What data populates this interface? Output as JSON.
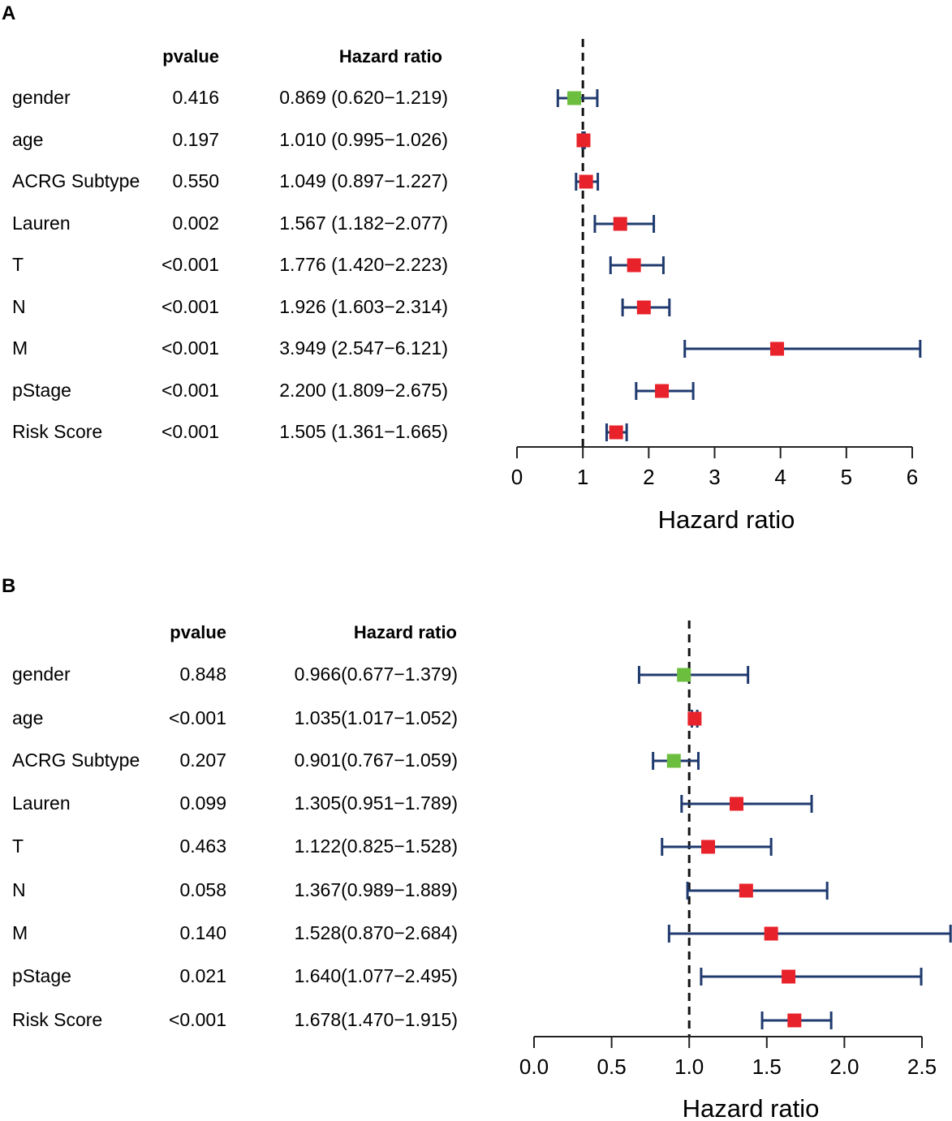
{
  "chart_data": [
    {
      "type": "forest",
      "panel": "A",
      "title": "",
      "headers": {
        "pvalue": "pvalue",
        "hr": "Hazard ratio"
      },
      "xlabel": "Hazard ratio",
      "xlim": [
        0,
        6
      ],
      "ticks": [
        "0",
        "1",
        "2",
        "3",
        "4",
        "5",
        "6"
      ],
      "tick_values": [
        0,
        1,
        2,
        3,
        4,
        5,
        6
      ],
      "reference": 1,
      "rows": [
        {
          "name": "gender",
          "pvalue": "0.416",
          "hr_text": "0.869 (0.620−1.219)",
          "hr": 0.869,
          "lo": 0.62,
          "hi": 1.219,
          "color": "#6cbe3f"
        },
        {
          "name": "age",
          "pvalue": "0.197",
          "hr_text": "1.010 (0.995−1.026)",
          "hr": 1.01,
          "lo": 0.995,
          "hi": 1.026,
          "color": "#e8222a"
        },
        {
          "name": "ACRG Subtype",
          "pvalue": "0.550",
          "hr_text": "1.049 (0.897−1.227)",
          "hr": 1.049,
          "lo": 0.897,
          "hi": 1.227,
          "color": "#e8222a"
        },
        {
          "name": "Lauren",
          "pvalue": "0.002",
          "hr_text": "1.567 (1.182−2.077)",
          "hr": 1.567,
          "lo": 1.182,
          "hi": 2.077,
          "color": "#e8222a"
        },
        {
          "name": "T",
          "pvalue": "<0.001",
          "hr_text": "1.776 (1.420−2.223)",
          "hr": 1.776,
          "lo": 1.42,
          "hi": 2.223,
          "color": "#e8222a"
        },
        {
          "name": "N",
          "pvalue": "<0.001",
          "hr_text": "1.926 (1.603−2.314)",
          "hr": 1.926,
          "lo": 1.603,
          "hi": 2.314,
          "color": "#e8222a"
        },
        {
          "name": "M",
          "pvalue": "<0.001",
          "hr_text": "3.949 (2.547−6.121)",
          "hr": 3.949,
          "lo": 2.547,
          "hi": 6.121,
          "color": "#e8222a"
        },
        {
          "name": "pStage",
          "pvalue": "<0.001",
          "hr_text": "2.200 (1.809−2.675)",
          "hr": 2.2,
          "lo": 1.809,
          "hi": 2.675,
          "color": "#e8222a"
        },
        {
          "name": "Risk Score",
          "pvalue": "<0.001",
          "hr_text": "1.505 (1.361−1.665)",
          "hr": 1.505,
          "lo": 1.361,
          "hi": 1.665,
          "color": "#e8222a"
        }
      ]
    },
    {
      "type": "forest",
      "panel": "B",
      "title": "",
      "headers": {
        "pvalue": "pvalue",
        "hr": "Hazard ratio"
      },
      "xlabel": "Hazard ratio",
      "xlim": [
        0,
        2.5
      ],
      "ticks": [
        "0.0",
        "0.5",
        "1.0",
        "1.5",
        "2.0",
        "2.5"
      ],
      "tick_values": [
        0,
        0.5,
        1.0,
        1.5,
        2.0,
        2.5
      ],
      "reference": 1,
      "rows": [
        {
          "name": "gender",
          "pvalue": "0.848",
          "hr_text": "0.966(0.677−1.379)",
          "hr": 0.966,
          "lo": 0.677,
          "hi": 1.379,
          "color": "#6cbe3f"
        },
        {
          "name": "age",
          "pvalue": "<0.001",
          "hr_text": "1.035(1.017−1.052)",
          "hr": 1.035,
          "lo": 1.017,
          "hi": 1.052,
          "color": "#e8222a"
        },
        {
          "name": "ACRG Subtype",
          "pvalue": "0.207",
          "hr_text": "0.901(0.767−1.059)",
          "hr": 0.901,
          "lo": 0.767,
          "hi": 1.059,
          "color": "#6cbe3f"
        },
        {
          "name": "Lauren",
          "pvalue": "0.099",
          "hr_text": "1.305(0.951−1.789)",
          "hr": 1.305,
          "lo": 0.951,
          "hi": 1.789,
          "color": "#e8222a"
        },
        {
          "name": "T",
          "pvalue": "0.463",
          "hr_text": "1.122(0.825−1.528)",
          "hr": 1.122,
          "lo": 0.825,
          "hi": 1.528,
          "color": "#e8222a"
        },
        {
          "name": "N",
          "pvalue": "0.058",
          "hr_text": "1.367(0.989−1.889)",
          "hr": 1.367,
          "lo": 0.989,
          "hi": 1.889,
          "color": "#e8222a"
        },
        {
          "name": "M",
          "pvalue": "0.140",
          "hr_text": "1.528(0.870−2.684)",
          "hr": 1.528,
          "lo": 0.87,
          "hi": 2.684,
          "color": "#e8222a"
        },
        {
          "name": "pStage",
          "pvalue": "0.021",
          "hr_text": "1.640(1.077−2.495)",
          "hr": 1.64,
          "lo": 1.077,
          "hi": 2.495,
          "color": "#e8222a"
        },
        {
          "name": "Risk Score",
          "pvalue": "<0.001",
          "hr_text": "1.678(1.470−1.915)",
          "hr": 1.678,
          "lo": 1.47,
          "hi": 1.915,
          "color": "#e8222a"
        }
      ]
    }
  ],
  "colors": {
    "whisker": "#1f3a6e",
    "axis": "#222222",
    "reference": "#111111"
  }
}
